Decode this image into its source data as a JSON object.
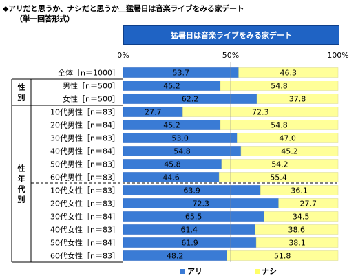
{
  "header": {
    "title": "◆アリだと思うか、ナシだと思うか＿猛暑日は音楽ライブをみる家デート",
    "subtitle": "（単一回答形式）",
    "box_label": "猛暑日は音楽ライブをみる家デート"
  },
  "colors": {
    "ari": "#3a7bd5",
    "nashi": "#ffff99",
    "ari_dark": "#1f5fbf"
  },
  "groups": [
    {
      "label": "性別",
      "from": 1,
      "to": 2
    },
    {
      "label": "性年代別",
      "from": 3,
      "to": 14
    }
  ],
  "chart_data": {
    "type": "bar",
    "orientation": "horizontal",
    "stacked": true,
    "percent": true,
    "xlim": [
      0,
      100
    ],
    "x_ticks": [
      "0%",
      "50%",
      "100%"
    ],
    "categories": [
      "全体［n＝1000］",
      "男性［n＝500］",
      "女性［n＝500］",
      "10代男性［n＝83］",
      "20代男性［n＝84］",
      "30代男性［n＝83］",
      "40代男性［n＝84］",
      "50代男性［n＝83］",
      "60代男性［n＝83］",
      "10代女性［n＝83］",
      "20代女性［n＝83］",
      "30代女性［n＝84］",
      "40代女性［n＝83］",
      "50代女性［n＝84］",
      "60代女性［n＝83］"
    ],
    "series": [
      {
        "name": "アリ",
        "values": [
          53.7,
          45.2,
          62.2,
          27.7,
          45.2,
          53.0,
          54.8,
          45.8,
          44.6,
          63.9,
          72.3,
          65.5,
          61.4,
          61.9,
          48.2
        ]
      },
      {
        "name": "ナシ",
        "values": [
          46.3,
          54.8,
          37.8,
          72.3,
          54.8,
          47.0,
          45.2,
          54.2,
          55.4,
          36.1,
          27.7,
          34.5,
          38.6,
          38.1,
          51.8
        ]
      }
    ],
    "value_labels": {
      "ari": [
        "53.7",
        "45.2",
        "62.2",
        "27.7",
        "45.2",
        "53.0",
        "54.8",
        "45.8",
        "44.6",
        "63.9",
        "72.3",
        "65.5",
        "61.4",
        "61.9",
        "48.2"
      ],
      "nashi": [
        "46.3",
        "54.8",
        "37.8",
        "72.3",
        "54.8",
        "47.0",
        "45.2",
        "54.2",
        "55.4",
        "36.1",
        "27.7",
        "34.5",
        "38.6",
        "38.1",
        "51.8"
      ]
    },
    "legend_position": "bottom"
  }
}
